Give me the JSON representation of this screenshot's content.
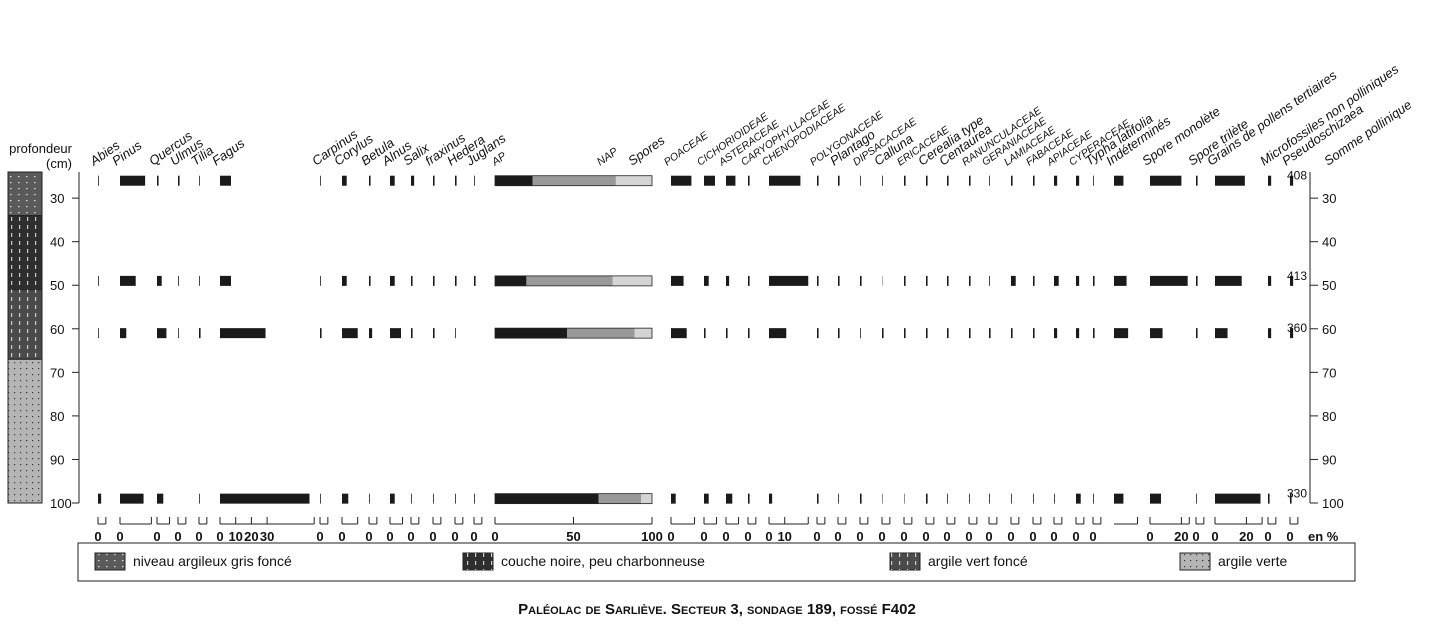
{
  "chart_data": {
    "type": "pollen",
    "title": "Paléolac de Sarliève. Secteur 3, sondage 189, fossé F402",
    "depth_label": "profondeur",
    "depth_unit": "(cm)",
    "unit_label": "en %",
    "ylim": [
      24,
      100
    ],
    "yticks": [
      30,
      40,
      50,
      60,
      70,
      80,
      90,
      100
    ],
    "depths": [
      26,
      49,
      61,
      99
    ],
    "lithology": [
      {
        "name": "niveau argileux gris foncé",
        "top": 24,
        "bottom": 34,
        "color": "#5a5a5a"
      },
      {
        "name": "couche noire, peu charbonneuse",
        "top": 34,
        "bottom": 51,
        "color": "#2e2e2e"
      },
      {
        "name": "argile vert foncé",
        "top": 51,
        "bottom": 67,
        "color": "#4b4b4b"
      },
      {
        "name": "argile verte",
        "top": 67,
        "bottom": 100,
        "color": "#b5b5b5"
      }
    ],
    "bar_color": "#1a1a1a",
    "trees": [
      {
        "name": "Abies",
        "values": [
          0.5,
          0.5,
          0.5,
          2
        ],
        "xlim": [
          0,
          5
        ],
        "xticks": [
          0
        ]
      },
      {
        "name": "Pinus",
        "values": [
          16,
          10,
          4,
          15
        ],
        "xlim": [
          0,
          20
        ],
        "xticks": [
          0
        ]
      },
      {
        "name": "Quercus",
        "values": [
          1,
          3,
          6,
          4
        ],
        "xlim": [
          0,
          8
        ],
        "xticks": [
          0
        ]
      },
      {
        "name": "Ulmus",
        "values": [
          1,
          0.5,
          0.5,
          0
        ],
        "xlim": [
          0,
          5
        ],
        "xticks": [
          0
        ]
      },
      {
        "name": "Tilia",
        "values": [
          0.5,
          0.5,
          1,
          0.5
        ],
        "xlim": [
          0,
          5
        ],
        "xticks": [
          0
        ]
      },
      {
        "name": "Fagus",
        "values": [
          7,
          7,
          29,
          57
        ],
        "xlim": [
          0,
          60
        ],
        "xticks": [
          0,
          10,
          20,
          30
        ]
      },
      {
        "name": "Carpinus",
        "values": [
          0.5,
          0.5,
          1,
          0.5
        ],
        "xlim": [
          0,
          5
        ],
        "xticks": [
          0
        ]
      },
      {
        "name": "Corylus",
        "values": [
          3,
          3,
          10,
          4
        ],
        "xlim": [
          0,
          10
        ],
        "xticks": [
          0
        ]
      },
      {
        "name": "Betula",
        "values": [
          1,
          1,
          2,
          0.5
        ],
        "xlim": [
          0,
          5
        ],
        "xticks": [
          0
        ]
      },
      {
        "name": "Alnus",
        "values": [
          3,
          3,
          7,
          3
        ],
        "xlim": [
          0,
          8
        ],
        "xticks": [
          0
        ]
      },
      {
        "name": "Salix",
        "values": [
          2,
          1,
          1,
          0.5
        ],
        "xlim": [
          0,
          5
        ],
        "xticks": [
          0
        ]
      },
      {
        "name": "fraxinus",
        "values": [
          1,
          1,
          1,
          0.5
        ],
        "xlim": [
          0,
          5
        ],
        "xticks": [
          0
        ]
      },
      {
        "name": "Hedera",
        "values": [
          1,
          1,
          0.5,
          0.5
        ],
        "xlim": [
          0,
          5
        ],
        "xticks": [
          0
        ]
      },
      {
        "name": "Juglans",
        "values": [
          0.5,
          1,
          0,
          0.5
        ],
        "xlim": [
          0,
          5
        ],
        "xticks": [
          0
        ]
      }
    ],
    "totals": {
      "xlim": [
        0,
        100
      ],
      "xticks": [
        0,
        50,
        100
      ],
      "series": [
        {
          "name": "AP",
          "color": "#1a1a1a",
          "values": [
            24,
            20,
            46,
            66
          ]
        },
        {
          "name": "NAP",
          "color": "#999999",
          "values": [
            53,
            55,
            43,
            27
          ]
        },
        {
          "name": "Spores",
          "color": "#d4d4d4",
          "values": [
            23,
            25,
            11,
            7
          ]
        }
      ]
    },
    "herbs": [
      {
        "name": "POACEAE",
        "values": [
          13,
          8,
          10,
          3
        ],
        "xlim": [
          0,
          15
        ],
        "xticks": [
          0
        ]
      },
      {
        "name": "CICHORIOIDEAE",
        "values": [
          7,
          3,
          1,
          3
        ],
        "xlim": [
          0,
          8
        ],
        "xticks": [
          0
        ]
      },
      {
        "name": "ASTERACEAE",
        "values": [
          6,
          2,
          1,
          4
        ],
        "xlim": [
          0,
          8
        ],
        "xticks": [
          0
        ]
      },
      {
        "name": "CARYOPHYLLACEAE",
        "values": [
          1,
          1,
          1,
          1
        ],
        "xlim": [
          0,
          5
        ],
        "xticks": [
          0
        ]
      },
      {
        "name": "CHENOPODIACEAE",
        "values": [
          20,
          25,
          11,
          2
        ],
        "xlim": [
          0,
          25
        ],
        "xticks": [
          0,
          10
        ]
      },
      {
        "name": "POLYGONACEAE",
        "values": [
          1,
          1,
          1,
          1
        ],
        "xlim": [
          0,
          5
        ],
        "xticks": [
          0
        ]
      },
      {
        "name": "Plantago",
        "values": [
          1,
          1,
          1,
          0.5
        ],
        "xlim": [
          0,
          5
        ],
        "xticks": [
          0
        ]
      },
      {
        "name": "DIPSACACEAE",
        "values": [
          0.5,
          1,
          0.5,
          1
        ],
        "xlim": [
          0,
          5
        ],
        "xticks": [
          0
        ]
      },
      {
        "name": "Calluna",
        "values": [
          0.5,
          0.2,
          1,
          0.3
        ],
        "xlim": [
          0,
          5
        ],
        "xticks": [
          0
        ]
      },
      {
        "name": "ERICACEAE",
        "values": [
          1,
          1,
          1,
          0.3
        ],
        "xlim": [
          0,
          5
        ],
        "xticks": [
          0
        ]
      },
      {
        "name": "Cerealia type",
        "values": [
          1,
          1,
          1,
          1
        ],
        "xlim": [
          0,
          5
        ],
        "xticks": [
          0
        ]
      },
      {
        "name": "Centaurea",
        "values": [
          1,
          1,
          1,
          0.5
        ],
        "xlim": [
          0,
          5
        ],
        "xticks": [
          0
        ]
      },
      {
        "name": "RANUNCULACEAE",
        "values": [
          1,
          1,
          1,
          0.5
        ],
        "xlim": [
          0,
          5
        ],
        "xticks": [
          0
        ]
      },
      {
        "name": "GERANIACEAE",
        "values": [
          0.5,
          0.5,
          1,
          0.5
        ],
        "xlim": [
          0,
          5
        ],
        "xticks": [
          0
        ]
      },
      {
        "name": "LAMIACEAE",
        "values": [
          1,
          3,
          1,
          0.5
        ],
        "xlim": [
          0,
          5
        ],
        "xticks": [
          0
        ]
      },
      {
        "name": "FABACEAE",
        "values": [
          1,
          1,
          1,
          0.5
        ],
        "xlim": [
          0,
          5
        ],
        "xticks": [
          0
        ]
      },
      {
        "name": "APIACEAE",
        "values": [
          2,
          3,
          2,
          0.5
        ],
        "xlim": [
          0,
          5
        ],
        "xticks": [
          0
        ]
      },
      {
        "name": "CYPERACEAE",
        "values": [
          2,
          2,
          2,
          3
        ],
        "xlim": [
          0,
          5
        ],
        "xticks": [
          0
        ]
      },
      {
        "name": "Typha latifolia",
        "values": [
          0.5,
          1,
          1,
          0.5
        ],
        "xlim": [
          0,
          5
        ],
        "xticks": [
          0
        ]
      },
      {
        "name": "Indéterminés",
        "values": [
          6,
          8,
          9,
          6
        ],
        "xlim": [
          0,
          15
        ],
        "xticks": []
      },
      {
        "name": "Spore monolète",
        "values": [
          20,
          24,
          8,
          7
        ],
        "xlim": [
          0,
          25
        ],
        "xticks": [
          0,
          20
        ]
      },
      {
        "name": "Spore trilète",
        "values": [
          1,
          1,
          1,
          0.5
        ],
        "xlim": [
          0,
          5
        ],
        "xticks": [
          0
        ]
      },
      {
        "name": "Grains de pollens tertiaires",
        "values": [
          19,
          17,
          8,
          29
        ],
        "xlim": [
          0,
          30
        ],
        "xticks": [
          0,
          20
        ]
      },
      {
        "name": "Microfossiles non polliniques",
        "values": [
          2,
          2,
          2,
          1
        ],
        "xlim": [
          0,
          5
        ],
        "xticks": [
          0
        ]
      },
      {
        "name": "Pseudoschizaea",
        "values": [
          2,
          2,
          2,
          1
        ],
        "xlim": [
          0,
          5
        ],
        "xticks": [
          0
        ]
      }
    ],
    "sums": {
      "name": "Somme pollinique",
      "values": [
        408,
        413,
        360,
        330
      ]
    }
  }
}
